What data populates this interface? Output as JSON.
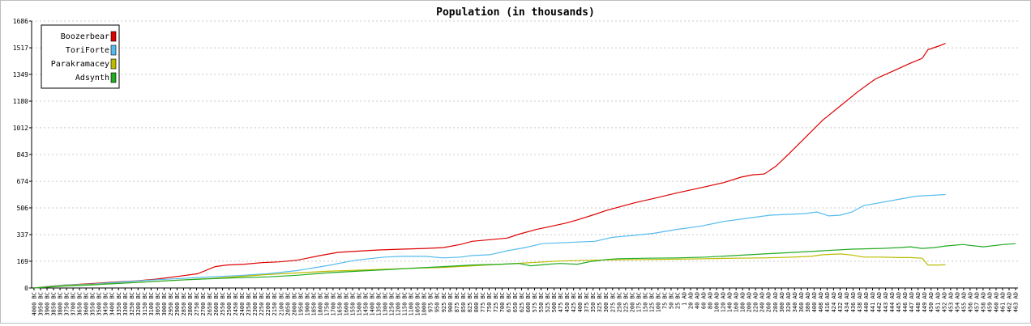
{
  "chart_data": {
    "type": "line",
    "title": "Population (in thousands)",
    "xlabel": "",
    "ylabel": "",
    "ylim": [
      0,
      1686
    ],
    "yticks": [
      0,
      169,
      337,
      506,
      674,
      843,
      1012,
      1180,
      1349,
      1517,
      1686
    ],
    "grid": true,
    "legend_position": "top-left",
    "categories": [
      "4000 BC",
      "3950 BC",
      "3900 BC",
      "3850 BC",
      "3800 BC",
      "3750 BC",
      "3700 BC",
      "3650 BC",
      "3600 BC",
      "3550 BC",
      "3500 BC",
      "3450 BC",
      "3400 BC",
      "3350 BC",
      "3300 BC",
      "3250 BC",
      "3200 BC",
      "3150 BC",
      "3100 BC",
      "3050 BC",
      "3000 BC",
      "2950 BC",
      "2900 BC",
      "2850 BC",
      "2800 BC",
      "2750 BC",
      "2700 BC",
      "2650 BC",
      "2600 BC",
      "2550 BC",
      "2500 BC",
      "2450 BC",
      "2400 BC",
      "2350 BC",
      "2300 BC",
      "2250 BC",
      "2200 BC",
      "2150 BC",
      "2100 BC",
      "2050 BC",
      "2000 BC",
      "1950 BC",
      "1900 BC",
      "1850 BC",
      "1800 BC",
      "1750 BC",
      "1700 BC",
      "1650 BC",
      "1600 BC",
      "1550 BC",
      "1500 BC",
      "1450 BC",
      "1400 BC",
      "1350 BC",
      "1300 BC",
      "1250 BC",
      "1200 BC",
      "1150 BC",
      "1100 BC",
      "1050 BC",
      "1000 BC",
      "975 BC",
      "950 BC",
      "925 BC",
      "900 BC",
      "875 BC",
      "850 BC",
      "825 BC",
      "800 BC",
      "775 BC",
      "750 BC",
      "725 BC",
      "700 BC",
      "675 BC",
      "650 BC",
      "625 BC",
      "600 BC",
      "575 BC",
      "550 BC",
      "525 BC",
      "500 BC",
      "475 BC",
      "450 BC",
      "425 BC",
      "400 BC",
      "375 BC",
      "350 BC",
      "325 BC",
      "300 BC",
      "275 BC",
      "250 BC",
      "225 BC",
      "200 BC",
      "175 BC",
      "150 BC",
      "125 BC",
      "100 BC",
      "75 BC",
      "50 BC",
      "25 BC",
      "1 AD",
      "20 AD",
      "40 AD",
      "60 AD",
      "80 AD",
      "100 AD",
      "120 AD",
      "140 AD",
      "160 AD",
      "180 AD",
      "200 AD",
      "220 AD",
      "240 AD",
      "260 AD",
      "280 AD",
      "300 AD",
      "320 AD",
      "340 AD",
      "360 AD",
      "380 AD",
      "400 AD",
      "408 AD",
      "416 AD",
      "424 AD",
      "432 AD",
      "434 AD",
      "436 AD",
      "438 AD",
      "440 AD",
      "441 AD",
      "442 AD",
      "443 AD",
      "444 AD",
      "445 AD",
      "446 AD",
      "447 AD",
      "448 AD",
      "449 AD",
      "450 AD",
      "451 AD",
      "452 AD",
      "453 AD",
      "454 AD",
      "455 AD",
      "456 AD",
      "457 AD",
      "458 AD",
      "459 AD",
      "460 AD",
      "461 AD",
      "462 AD",
      "463 AD"
    ],
    "series": [
      {
        "name": "Boozerbear",
        "color": "#dd0000",
        "points": [
          [
            0,
            0
          ],
          [
            6,
            12
          ],
          [
            10,
            18
          ],
          [
            14,
            22
          ],
          [
            20,
            28
          ],
          [
            28,
            38
          ],
          [
            35,
            45
          ],
          [
            42,
            56
          ],
          [
            50,
            75
          ],
          [
            56,
            90
          ],
          [
            62,
            135
          ],
          [
            66,
            145
          ],
          [
            72,
            150
          ],
          [
            78,
            160
          ],
          [
            84,
            165
          ],
          [
            90,
            175
          ],
          [
            98,
            205
          ],
          [
            104,
            225
          ],
          [
            110,
            232
          ],
          [
            118,
            240
          ],
          [
            126,
            245
          ],
          [
            134,
            250
          ],
          [
            140,
            255
          ],
          [
            146,
            275
          ],
          [
            150,
            295
          ],
          [
            156,
            305
          ],
          [
            162,
            315
          ],
          [
            166,
            340
          ],
          [
            172,
            370
          ],
          [
            176,
            385
          ],
          [
            182,
            410
          ],
          [
            186,
            430
          ],
          [
            192,
            465
          ],
          [
            196,
            490
          ],
          [
            202,
            520
          ],
          [
            206,
            540
          ],
          [
            212,
            565
          ],
          [
            220,
            600
          ],
          [
            230,
            640
          ],
          [
            236,
            665
          ],
          [
            242,
            700
          ],
          [
            246,
            715
          ],
          [
            250,
            720
          ],
          [
            254,
            770
          ],
          [
            258,
            840
          ],
          [
            264,
            950
          ],
          [
            270,
            1060
          ],
          [
            276,
            1150
          ],
          [
            282,
            1240
          ],
          [
            288,
            1320
          ],
          [
            294,
            1370
          ],
          [
            300,
            1420
          ],
          [
            304,
            1450
          ],
          [
            306,
            1505
          ],
          [
            310,
            1530
          ],
          [
            312,
            1545
          ]
        ]
      },
      {
        "name": "ToriForte",
        "color": "#55bbee",
        "points": [
          [
            0,
            0
          ],
          [
            10,
            18
          ],
          [
            20,
            25
          ],
          [
            30,
            38
          ],
          [
            40,
            50
          ],
          [
            50,
            60
          ],
          [
            60,
            70
          ],
          [
            70,
            78
          ],
          [
            80,
            90
          ],
          [
            90,
            110
          ],
          [
            100,
            140
          ],
          [
            110,
            175
          ],
          [
            120,
            195
          ],
          [
            126,
            200
          ],
          [
            134,
            200
          ],
          [
            140,
            190
          ],
          [
            146,
            195
          ],
          [
            150,
            205
          ],
          [
            156,
            210
          ],
          [
            162,
            235
          ],
          [
            168,
            255
          ],
          [
            174,
            280
          ],
          [
            180,
            285
          ],
          [
            186,
            290
          ],
          [
            192,
            295
          ],
          [
            198,
            320
          ],
          [
            204,
            330
          ],
          [
            212,
            345
          ],
          [
            220,
            370
          ],
          [
            228,
            390
          ],
          [
            236,
            420
          ],
          [
            244,
            440
          ],
          [
            252,
            460
          ],
          [
            258,
            465
          ],
          [
            264,
            470
          ],
          [
            268,
            480
          ],
          [
            272,
            455
          ],
          [
            276,
            460
          ],
          [
            280,
            480
          ],
          [
            284,
            520
          ],
          [
            290,
            540
          ],
          [
            296,
            560
          ],
          [
            302,
            580
          ],
          [
            312,
            590
          ]
        ]
      },
      {
        "name": "Parakramacey",
        "color": "#bbbb00",
        "points": [
          [
            0,
            0
          ],
          [
            10,
            15
          ],
          [
            20,
            22
          ],
          [
            30,
            30
          ],
          [
            40,
            40
          ],
          [
            50,
            50
          ],
          [
            60,
            60
          ],
          [
            70,
            72
          ],
          [
            80,
            85
          ],
          [
            90,
            95
          ],
          [
            100,
            105
          ],
          [
            110,
            112
          ],
          [
            120,
            118
          ],
          [
            130,
            125
          ],
          [
            140,
            130
          ],
          [
            150,
            140
          ],
          [
            160,
            150
          ],
          [
            170,
            160
          ],
          [
            180,
            170
          ],
          [
            190,
            175
          ],
          [
            200,
            178
          ],
          [
            210,
            180
          ],
          [
            220,
            182
          ],
          [
            230,
            185
          ],
          [
            240,
            188
          ],
          [
            250,
            190
          ],
          [
            260,
            195
          ],
          [
            266,
            200
          ],
          [
            270,
            210
          ],
          [
            276,
            215
          ],
          [
            280,
            208
          ],
          [
            284,
            195
          ],
          [
            290,
            195
          ],
          [
            296,
            192
          ],
          [
            300,
            192
          ],
          [
            304,
            188
          ],
          [
            306,
            145
          ],
          [
            310,
            145
          ],
          [
            312,
            148
          ]
        ]
      },
      {
        "name": "Adsynth",
        "color": "#22aa22",
        "points": [
          [
            0,
            0
          ],
          [
            10,
            12
          ],
          [
            20,
            20
          ],
          [
            30,
            30
          ],
          [
            40,
            40
          ],
          [
            50,
            50
          ],
          [
            60,
            58
          ],
          [
            70,
            65
          ],
          [
            80,
            70
          ],
          [
            90,
            80
          ],
          [
            100,
            95
          ],
          [
            110,
            105
          ],
          [
            120,
            115
          ],
          [
            130,
            125
          ],
          [
            140,
            135
          ],
          [
            150,
            145
          ],
          [
            160,
            150
          ],
          [
            166,
            155
          ],
          [
            170,
            140
          ],
          [
            176,
            150
          ],
          [
            180,
            155
          ],
          [
            186,
            150
          ],
          [
            190,
            165
          ],
          [
            196,
            180
          ],
          [
            200,
            185
          ],
          [
            210,
            188
          ],
          [
            220,
            190
          ],
          [
            230,
            195
          ],
          [
            240,
            205
          ],
          [
            250,
            215
          ],
          [
            260,
            225
          ],
          [
            270,
            235
          ],
          [
            280,
            245
          ],
          [
            290,
            250
          ],
          [
            296,
            255
          ],
          [
            300,
            260
          ],
          [
            304,
            250
          ],
          [
            308,
            255
          ],
          [
            312,
            265
          ],
          [
            318,
            275
          ],
          [
            320,
            270
          ],
          [
            325,
            260
          ],
          [
            332,
            275
          ],
          [
            336,
            280
          ]
        ]
      }
    ]
  }
}
